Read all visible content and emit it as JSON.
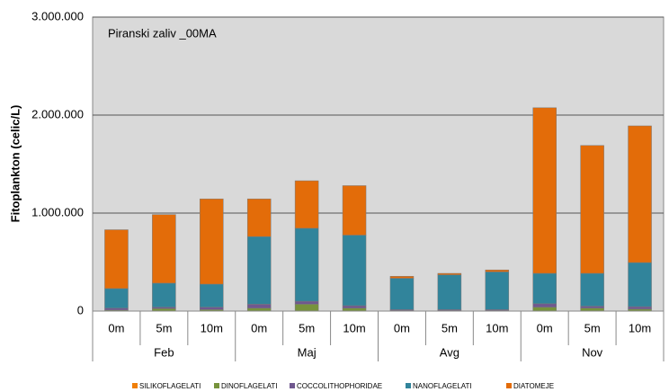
{
  "chart_data": {
    "type": "bar",
    "stacked": true,
    "annotation": "Piranski zaliv _00MA",
    "y_label": "Fitoplankton (celic/L)",
    "categories": [
      "0m",
      "5m",
      "10m",
      "0m",
      "5m",
      "10m",
      "0m",
      "5m",
      "10m",
      "0m",
      "5m",
      "10m"
    ],
    "groups": [
      "Feb",
      "Maj",
      "Avg",
      "Nov"
    ],
    "series": [
      {
        "name": "SILIKOFLAGELATI",
        "color": "#f07f09",
        "values": [
          0,
          0,
          0,
          0,
          0,
          0,
          0,
          0,
          0,
          0,
          0,
          0
        ]
      },
      {
        "name": "DINOFLAGELATI",
        "color": "#77933c",
        "values": [
          10000,
          25000,
          15000,
          30000,
          70000,
          30000,
          5000,
          5000,
          5000,
          40000,
          30000,
          20000
        ]
      },
      {
        "name": "COCCOLITHOPHORIDAE",
        "color": "#70588f",
        "values": [
          20000,
          15000,
          25000,
          40000,
          30000,
          25000,
          10000,
          10000,
          10000,
          35000,
          20000,
          25000
        ]
      },
      {
        "name": "NANOFLAGELATI",
        "color": "#31849b",
        "values": [
          200000,
          245000,
          235000,
          690000,
          745000,
          720000,
          320000,
          355000,
          385000,
          310000,
          335000,
          450000
        ]
      },
      {
        "name": "DIATOMEJE",
        "color": "#e36c09",
        "values": [
          600000,
          700000,
          870000,
          385000,
          485000,
          505000,
          20000,
          15000,
          20000,
          1690000,
          1305000,
          1395000
        ]
      }
    ],
    "ylim": [
      0,
      3000000
    ],
    "yticks": [
      0,
      {
        "value": 1000000,
        "label": "1.000.000"
      },
      {
        "value": 2000000,
        "label": "2.000.000"
      },
      {
        "value": 3000000,
        "label": "3.000.000"
      }
    ],
    "grid": true
  }
}
